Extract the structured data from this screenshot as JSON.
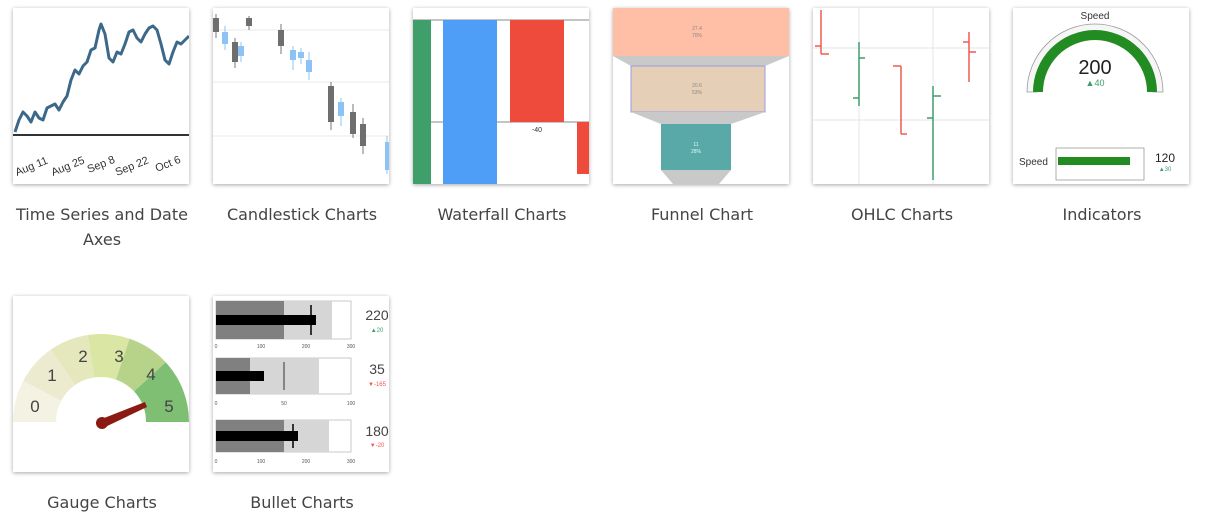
{
  "gallery": {
    "items": [
      {
        "id": "time-series",
        "label": "Time Series and Date Axes",
        "ticks": [
          "Aug 11",
          "Aug 25",
          "Sep 8",
          "Sep 22",
          "Oct 6"
        ]
      },
      {
        "id": "candlestick",
        "label": "Candlestick Charts"
      },
      {
        "id": "waterfall",
        "label": "Waterfall Charts",
        "value_label": "-40"
      },
      {
        "id": "funnel",
        "label": "Funnel Chart",
        "stages": [
          {
            "value": "27.4",
            "pct": "70%"
          },
          {
            "value": "20.6",
            "pct": "53%"
          },
          {
            "value": "11",
            "pct": "28%"
          }
        ]
      },
      {
        "id": "ohlc",
        "label": "OHLC Charts"
      },
      {
        "id": "indicators",
        "label": "Indicators",
        "gauge": {
          "title": "Speed",
          "value": "200",
          "delta": "▲40"
        },
        "bullet": {
          "title": "Speed",
          "value": "120",
          "delta": "▲30"
        }
      },
      {
        "id": "gauge",
        "label": "Gauge Charts",
        "bands": [
          "0",
          "1",
          "2",
          "3",
          "4",
          "5"
        ]
      },
      {
        "id": "bullet",
        "label": "Bullet Charts",
        "rows": [
          {
            "value": "220",
            "delta": "▲20",
            "ticks": [
              "0",
              "100",
              "200",
              "300"
            ]
          },
          {
            "value": "35",
            "delta": "▼-165",
            "ticks": [
              "0",
              "50",
              "100"
            ]
          },
          {
            "value": "180",
            "delta": "▼-20",
            "ticks": [
              "0",
              "100",
              "200",
              "300"
            ]
          }
        ]
      }
    ]
  },
  "colors": {
    "caption": "#444444",
    "green": "#228B22",
    "red": "#ef4b3d",
    "blue": "#4e9ef7"
  }
}
